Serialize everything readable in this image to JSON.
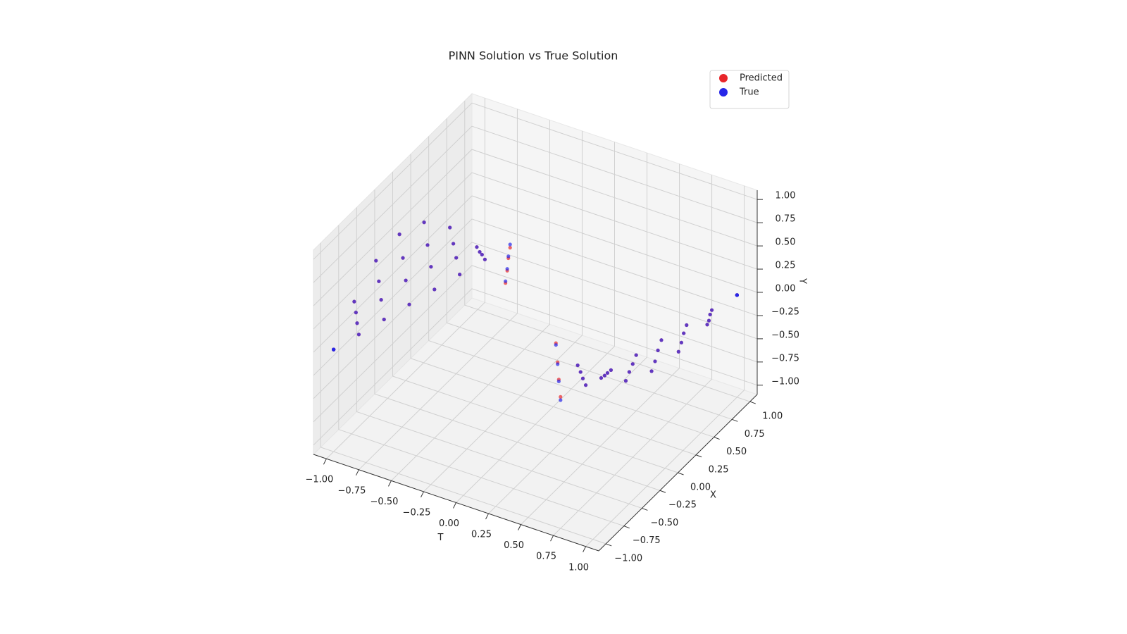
{
  "chart_data": {
    "type": "scatter3d",
    "title": "PINN Solution vs True Solution",
    "tlabel": "T",
    "xlabel": "X",
    "ylabel": "Y",
    "t": [
      -1,
      -0.875,
      -0.75,
      -0.625,
      -0.5,
      -0.375,
      -0.25,
      -0.125,
      0.125,
      0.25,
      0.375,
      0.5,
      0.625,
      0.75,
      0.875,
      1,
      -1,
      -0.905,
      -0.8,
      -0.685,
      -0.56,
      -0.435,
      -0.3,
      -0.155,
      0.095,
      0.2,
      0.315,
      0.44,
      0.565,
      0.7,
      0.845,
      1,
      -1,
      -0.925,
      -0.84,
      -0.735,
      -0.62,
      -0.485,
      -0.34,
      -0.175,
      0.075,
      0.16,
      0.265,
      0.38,
      0.515,
      0.66,
      0.825,
      1,
      -1,
      -0.955,
      -0.89,
      -0.795,
      -0.68,
      -0.545,
      -0.39,
      -0.205,
      0.045,
      0.11,
      0.205,
      0.32,
      0.455,
      0.61,
      0.795,
      1
    ],
    "x": [
      -1,
      -0.875,
      -0.75,
      -0.625,
      -0.5,
      -0.375,
      -0.25,
      -0.125,
      0.125,
      0.25,
      0.375,
      0.5,
      0.625,
      0.75,
      0.875,
      1,
      -1,
      -0.845,
      -0.7,
      -0.565,
      -0.44,
      -0.315,
      -0.2,
      -0.095,
      0.155,
      0.3,
      0.435,
      0.56,
      0.685,
      0.8,
      0.905,
      1,
      -1,
      -0.825,
      -0.66,
      -0.515,
      -0.38,
      -0.265,
      -0.16,
      -0.075,
      0.175,
      0.34,
      0.485,
      0.62,
      0.735,
      0.84,
      0.925,
      1,
      -1,
      -0.795,
      -0.61,
      -0.455,
      -0.32,
      -0.205,
      -0.11,
      -0.045,
      0.205,
      0.39,
      0.545,
      0.68,
      0.795,
      0.89,
      0.955,
      1
    ],
    "series": [
      {
        "name": "Predicted",
        "color": "#e8262a",
        "values": [
          0,
          0.125,
          0.25,
          0.375,
          0.5,
          0.625,
          0.75,
          0.84,
          -0.84,
          -0.75,
          -0.625,
          -0.5,
          -0.375,
          -0.25,
          -0.125,
          0,
          0,
          0.21,
          0.4,
          0.56,
          0.67,
          0.73,
          0.74,
          0.69,
          -0.69,
          -0.74,
          -0.73,
          -0.67,
          -0.56,
          -0.4,
          -0.21,
          0,
          0,
          0.3,
          0.55,
          0.74,
          0.83,
          0.82,
          0.72,
          0.53,
          -0.53,
          -0.72,
          -0.82,
          -0.83,
          -0.74,
          -0.55,
          -0.3,
          0,
          0,
          0.38,
          0.71,
          0.92,
          1,
          0.92,
          0.71,
          0.36,
          -0.36,
          -0.71,
          -0.92,
          -1,
          -0.92,
          -0.71,
          -0.38,
          0
        ]
      },
      {
        "name": "True",
        "color": "#2626e8",
        "values": [
          0,
          0.125,
          0.25,
          0.375,
          0.5,
          0.625,
          0.75,
          0.875,
          -0.875,
          -0.75,
          -0.625,
          -0.5,
          -0.375,
          -0.25,
          -0.125,
          0,
          0,
          0.21,
          0.4,
          0.56,
          0.67,
          0.73,
          0.74,
          0.71,
          -0.71,
          -0.74,
          -0.73,
          -0.67,
          -0.56,
          -0.4,
          -0.21,
          0,
          0,
          0.3,
          0.55,
          0.74,
          0.83,
          0.82,
          0.72,
          0.55,
          -0.55,
          -0.72,
          -0.82,
          -0.83,
          -0.74,
          -0.55,
          -0.3,
          0,
          0,
          0.38,
          0.71,
          0.92,
          1,
          0.92,
          0.71,
          0.38,
          -0.38,
          -0.71,
          -0.92,
          -1,
          -0.92,
          -0.71,
          -0.38,
          0
        ]
      }
    ],
    "tlim": [
      -1.1,
      1.1
    ],
    "xlim": [
      -1.1,
      1.1
    ],
    "ylim": [
      -1.1,
      1.1
    ],
    "tticks": [
      {
        "value": -1,
        "label": "−1.00"
      },
      {
        "value": -0.75,
        "label": "−0.75"
      },
      {
        "value": -0.5,
        "label": "−0.50"
      },
      {
        "value": -0.25,
        "label": "−0.25"
      },
      {
        "value": 0,
        "label": "0.00"
      },
      {
        "value": 0.25,
        "label": "0.25"
      },
      {
        "value": 0.5,
        "label": "0.50"
      },
      {
        "value": 0.75,
        "label": "0.75"
      },
      {
        "value": 1,
        "label": "1.00"
      }
    ],
    "xticks": [
      {
        "value": -1,
        "label": "−1.00"
      },
      {
        "value": -0.75,
        "label": "−0.75"
      },
      {
        "value": -0.5,
        "label": "−0.50"
      },
      {
        "value": -0.25,
        "label": "−0.25"
      },
      {
        "value": 0,
        "label": "0.00"
      },
      {
        "value": 0.25,
        "label": "0.25"
      },
      {
        "value": 0.5,
        "label": "0.50"
      },
      {
        "value": 0.75,
        "label": "0.75"
      },
      {
        "value": 1,
        "label": "1.00"
      }
    ],
    "yticks": [
      {
        "value": -1,
        "label": "−1.00"
      },
      {
        "value": -0.75,
        "label": "−0.75"
      },
      {
        "value": -0.5,
        "label": "−0.50"
      },
      {
        "value": -0.25,
        "label": "−0.25"
      },
      {
        "value": 0,
        "label": "0.00"
      },
      {
        "value": 0.25,
        "label": "0.25"
      },
      {
        "value": 0.5,
        "label": "0.50"
      },
      {
        "value": 0.75,
        "label": "0.75"
      },
      {
        "value": 1,
        "label": "1.00"
      }
    ],
    "grid": true,
    "legend": "upper right"
  }
}
